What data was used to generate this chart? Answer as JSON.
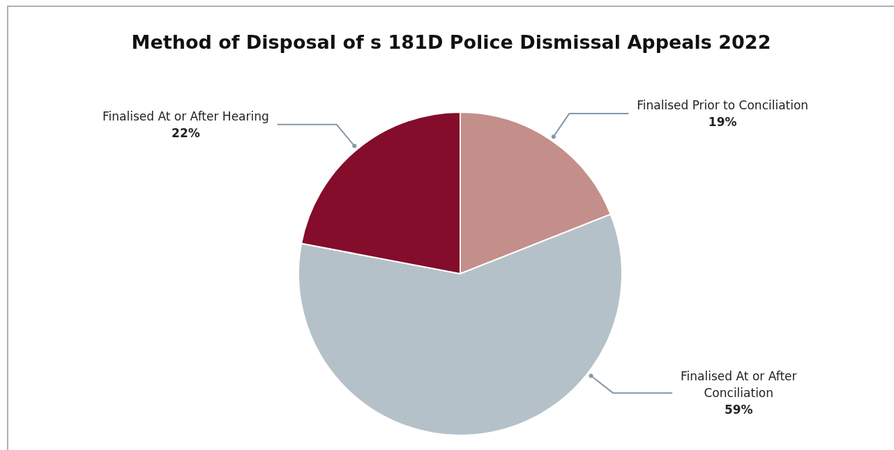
{
  "chart_data": {
    "type": "pie",
    "title": "Method of Disposal of s 181D Police Dismissal Appeals 2022",
    "categories": [
      "Finalised Prior to Conciliation",
      "Finalised At or After Conciliation",
      "Finalised At or After Hearing"
    ],
    "values": [
      19,
      59,
      22
    ],
    "colors": [
      "#c48e8b",
      "#b5c1c8",
      "#830d2b"
    ],
    "value_labels": [
      "19%",
      "59%",
      "22%"
    ],
    "legend": false
  }
}
